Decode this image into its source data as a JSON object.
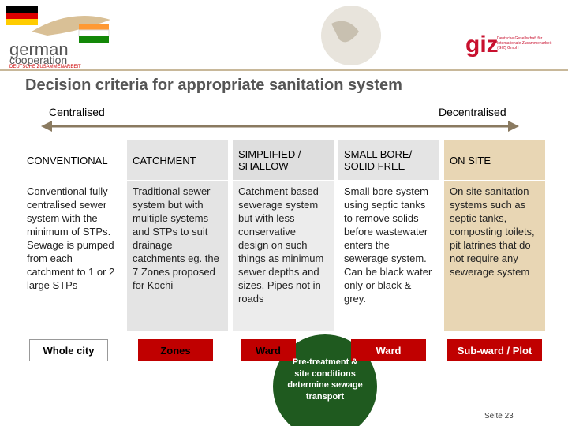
{
  "header": {
    "logo_line1": "german",
    "logo_line2": "cooperation",
    "logo_line3": "DEUTSCHE ZUSAMMENARBEIT",
    "giz": "giz",
    "giz_text": "Deutsche Gesellschaft für Internationale Zusammenarbeit (GIZ) GmbH"
  },
  "title": "Decision criteria for appropriate sanitation system",
  "scale": {
    "left": "Centralised",
    "right": "Decentralised"
  },
  "columns": [
    {
      "heading": "CONVENTIONAL",
      "description": "Conventional fully centralised sewer system with the minimum of STPs. Sewage is pumped from each catchment to 1 or 2 large STPs",
      "level": "Whole city"
    },
    {
      "heading": "CATCHMENT",
      "description": "Traditional sewer system but with multiple systems and STPs to suit drainage catchments eg. the 7 Zones proposed for Kochi",
      "level": "Zones"
    },
    {
      "heading": "SIMPLIFIED / SHALLOW",
      "description": "Catchment based sewerage system but with less conservative design on such things as minimum sewer depths and sizes. Pipes not in roads",
      "level": "Ward"
    },
    {
      "heading": "SMALL BORE/ SOLID FREE",
      "description": "Small bore system using septic tanks to remove solids before wastewater enters the sewerage system. Can be black water only or black & grey.",
      "level": "Ward"
    },
    {
      "heading": "ON SITE",
      "description": "On site sanitation systems such as septic tanks, composting toilets, pit latrines that do not require any sewerage system",
      "level": "Sub-ward / Plot"
    }
  ],
  "circle": "Pre-treatment & site conditions determine sewage transport",
  "page": "Seite 23"
}
